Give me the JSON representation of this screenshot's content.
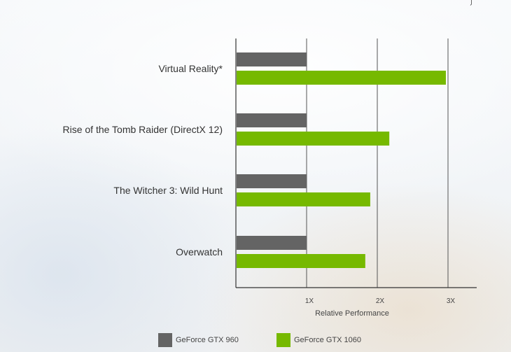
{
  "colors": {
    "gtx960": "#646464",
    "gtx1060": "#76b900",
    "axis": "#333333",
    "grid": "#555555"
  },
  "chart_data": {
    "type": "bar",
    "orientation": "horizontal",
    "categories": [
      "Virtual Reality*",
      "Rise of the Tomb Raider (DirectX 12)",
      "The Witcher 3: Wild Hunt",
      "Overwatch"
    ],
    "series": [
      {
        "name": "GeForce GTX 960",
        "color": "#646464",
        "values": [
          1.0,
          1.0,
          1.0,
          1.0
        ]
      },
      {
        "name": "GeForce GTX 1060",
        "color": "#76b900",
        "values": [
          2.97,
          2.17,
          1.9,
          1.83
        ]
      }
    ],
    "xlabel": "Relative Performance",
    "xlim": [
      0,
      3.4
    ],
    "xticks": [
      {
        "value": 1,
        "label": "1X"
      },
      {
        "value": 2,
        "label": "2X"
      },
      {
        "value": 3,
        "label": "3X"
      }
    ],
    "grid": true,
    "legend_position": "bottom"
  }
}
